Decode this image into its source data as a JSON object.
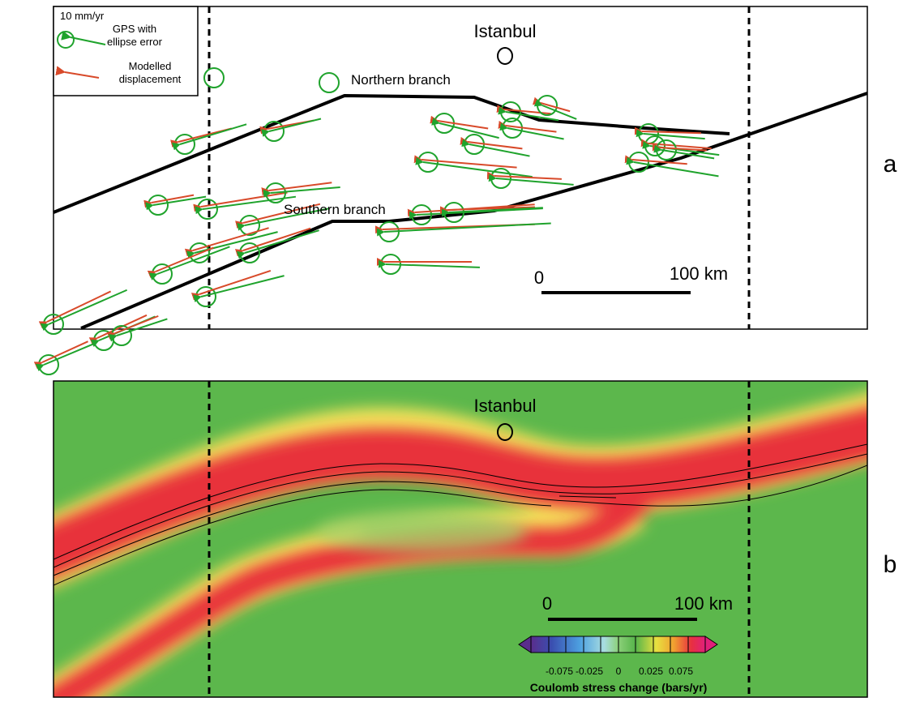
{
  "panel_a": {
    "panel_letter": "a",
    "city_label": "Istanbul",
    "northern_branch_label": "Northern branch",
    "southern_branch_label": "Southern branch",
    "legend": {
      "scale_label": "10 mm/yr",
      "gps_label_line1": "GPS with",
      "gps_label_line2": "ellipse error",
      "model_label_line1": "Modelled",
      "model_label_line2": "displacement"
    },
    "scalebar": {
      "start_label": "0",
      "end_label": "100 km"
    },
    "colors": {
      "gps": "#1fa32c",
      "model": "#d84a2a",
      "fault": "#000000"
    }
  },
  "panel_b": {
    "panel_letter": "b",
    "city_label": "Istanbul",
    "scalebar": {
      "start_label": "0",
      "end_label": "100 km"
    },
    "colorbar": {
      "tick_labels": [
        "-0.075",
        "-0.025",
        "0",
        "0.025",
        "0.075"
      ],
      "title": "Coulomb stress change (bars/yr)",
      "colors": [
        "#5a2d8c",
        "#3a4fb0",
        "#4da0e0",
        "#a8dde0",
        "#8cd07a",
        "#56b44a",
        "#e8e040",
        "#f0a030",
        "#e83040",
        "#e0207a"
      ]
    },
    "colors": {
      "background": "#5cb74c",
      "high_stress": "#e8323a",
      "transition": "#f6e35a"
    }
  }
}
